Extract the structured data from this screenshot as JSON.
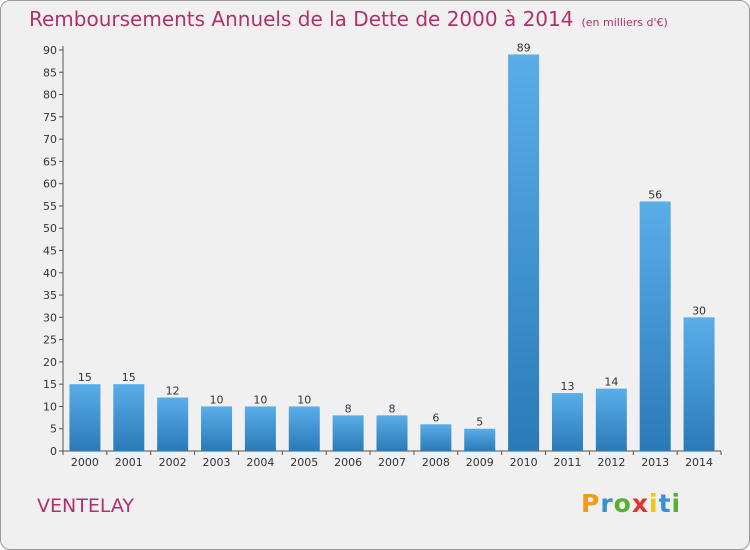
{
  "header": {
    "title": "Remboursements Annuels de la Dette de 2000 à 2014",
    "subtitle": "(en milliers d'€)"
  },
  "commune": "VENTELAY",
  "logo": {
    "letters": [
      "P",
      "r",
      "o",
      "x",
      "i",
      "t",
      "i"
    ],
    "colors": [
      "#f29a17",
      "#3a8fd8",
      "#58b030",
      "#e2342b",
      "#f2c318",
      "#3a8fd8",
      "#58b030"
    ]
  },
  "chart_data": {
    "type": "bar",
    "title": "Remboursements Annuels de la Dette de 2000 à 2014",
    "subtitle": "(en milliers d'€)",
    "xlabel": "",
    "ylabel": "",
    "categories": [
      "2000",
      "2001",
      "2002",
      "2003",
      "2004",
      "2005",
      "2006",
      "2007",
      "2008",
      "2009",
      "2010",
      "2011",
      "2012",
      "2013",
      "2014"
    ],
    "values": [
      15,
      15,
      12,
      10,
      10,
      10,
      8,
      8,
      6,
      5,
      89,
      13,
      14,
      56,
      30
    ],
    "ylim": [
      0,
      90
    ],
    "yticks": [
      0,
      5,
      10,
      15,
      20,
      25,
      30,
      35,
      40,
      45,
      50,
      55,
      60,
      65,
      70,
      75,
      80,
      85,
      90
    ],
    "grid": false,
    "legend": "none",
    "colors": {
      "bar_light": "#5aaee8",
      "bar_dark": "#2a7ab8",
      "title": "#b0306e",
      "axis": "#555555"
    }
  }
}
